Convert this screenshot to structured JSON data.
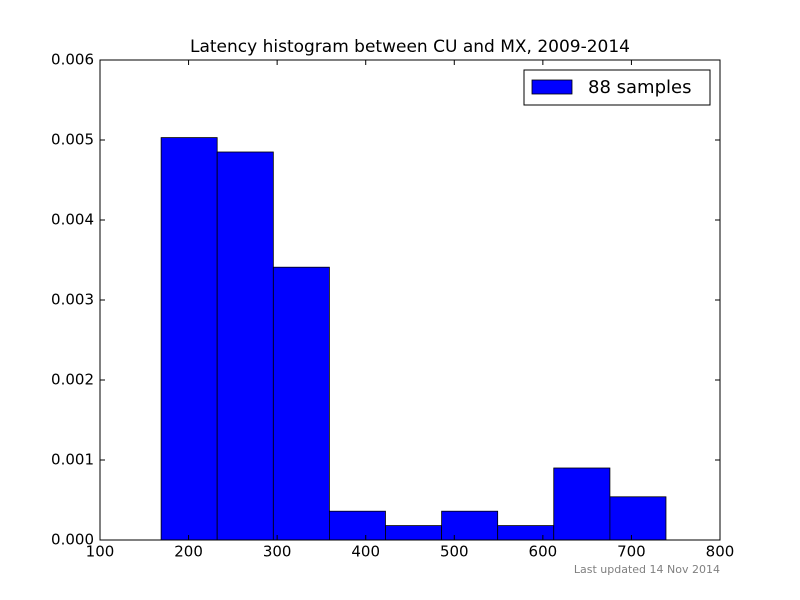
{
  "chart_data": {
    "type": "histogram",
    "title": "Latency histogram between CU and MX, 2009-2014",
    "bins": [
      169,
      232.3,
      295.7,
      359,
      422.3,
      485.7,
      549,
      612.3,
      675.7,
      739
    ],
    "series": [
      {
        "name": "88 samples",
        "color": "#0000ff",
        "values": [
          0.00503,
          0.00485,
          0.00341,
          0.00036,
          0.00018,
          0.00036,
          0.00018,
          0.0009,
          0.00054
        ]
      }
    ],
    "xlim": [
      100,
      800
    ],
    "xticks": [
      100,
      200,
      300,
      400,
      500,
      600,
      700,
      800
    ],
    "ylim": [
      0,
      0.006
    ],
    "yticks": [
      {
        "value": 0,
        "label": "0.000"
      },
      {
        "value": 0.001,
        "label": "0.001"
      },
      {
        "value": 0.002,
        "label": "0.002"
      },
      {
        "value": 0.003,
        "label": "0.003"
      },
      {
        "value": 0.004,
        "label": "0.004"
      },
      {
        "value": 0.005,
        "label": "0.005"
      },
      {
        "value": 0.006,
        "label": "0.006"
      }
    ],
    "legend": "upper right",
    "annotation": "Last updated 14 Nov 2014"
  }
}
